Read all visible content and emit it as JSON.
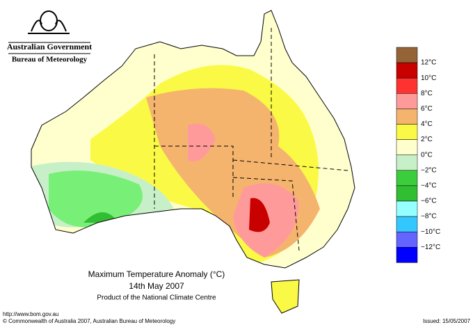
{
  "header": {
    "government": "Australian Government",
    "agency": "Bureau of Meteorology"
  },
  "map": {
    "title": "Maximum Temperature Anomaly (°C)",
    "date": "14th May 2007",
    "product": "Product of the National Climate Centre"
  },
  "legend": {
    "colors": [
      "#946437",
      "#c80000",
      "#ff3232",
      "#ff9a9a",
      "#f5b46e",
      "#fafa46",
      "#ffffcd",
      "#c8f0c8",
      "#3ccd3c",
      "#32be32",
      "#96ffff",
      "#32c8ff",
      "#6464ff",
      "#0000ff"
    ],
    "labels": [
      "12°C",
      "10°C",
      "8°C",
      "6°C",
      "4°C",
      "2°C",
      "0°C",
      "−2°C",
      "−4°C",
      "−6°C",
      "−8°C",
      "−10°C",
      "−12°C"
    ]
  },
  "footer": {
    "url": "http://www.bom.gov.au",
    "copyright": "© Commonwealth of Australia 2007, Australian Bureau of Meteorology",
    "issued": "Issued: 15/05/2007"
  }
}
